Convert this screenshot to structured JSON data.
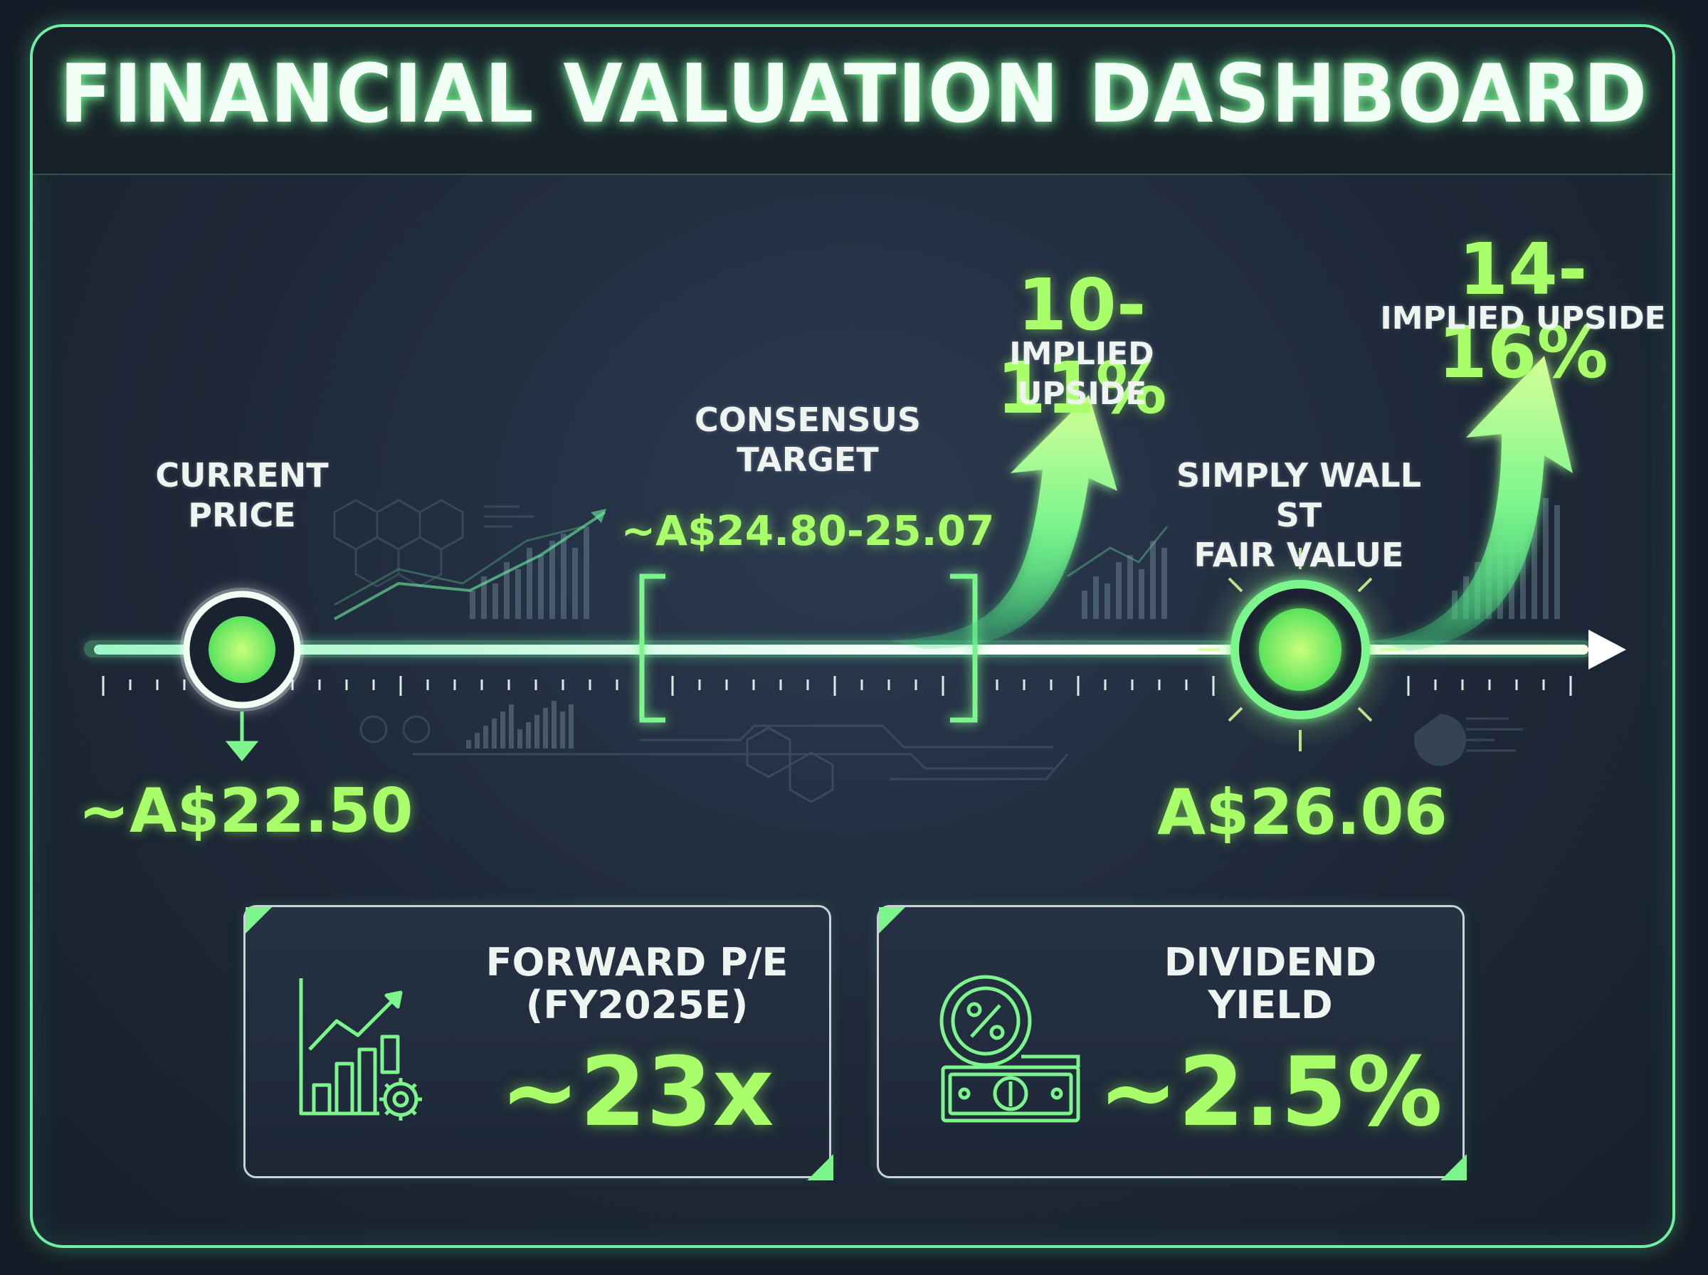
{
  "title": "FINANCIAL VALUATION DASHBOARD",
  "timeline": {
    "current": {
      "label_line1": "CURRENT",
      "label_line2": "PRICE",
      "value": "~A$22.50"
    },
    "consensus": {
      "label_line1": "CONSENSUS",
      "label_line2": "TARGET",
      "value": "~A$24.80-25.07",
      "upside_pct": "10-11%",
      "upside_label": "IMPLIED UPSIDE"
    },
    "fair_value": {
      "label_line1": "SIMPLY WALL ST",
      "label_line2": "FAIR VALUE",
      "value": "A$26.06",
      "upside_pct": "14-16%",
      "upside_label": "IMPLIED UPSIDE"
    }
  },
  "cards": {
    "pe": {
      "title_line1": "FORWARD P/E",
      "title_line2": "(FY2025E)",
      "value": "~23x",
      "icon": "growth-chart-gear-icon"
    },
    "dividend": {
      "title_line1": "DIVIDEND",
      "title_line2": "YIELD",
      "value": "~2.5%",
      "icon": "percent-coin-cash-icon"
    }
  },
  "colors": {
    "accent": "#a8ff6a",
    "glow": "#6df0a0",
    "background": "#1e2838"
  }
}
